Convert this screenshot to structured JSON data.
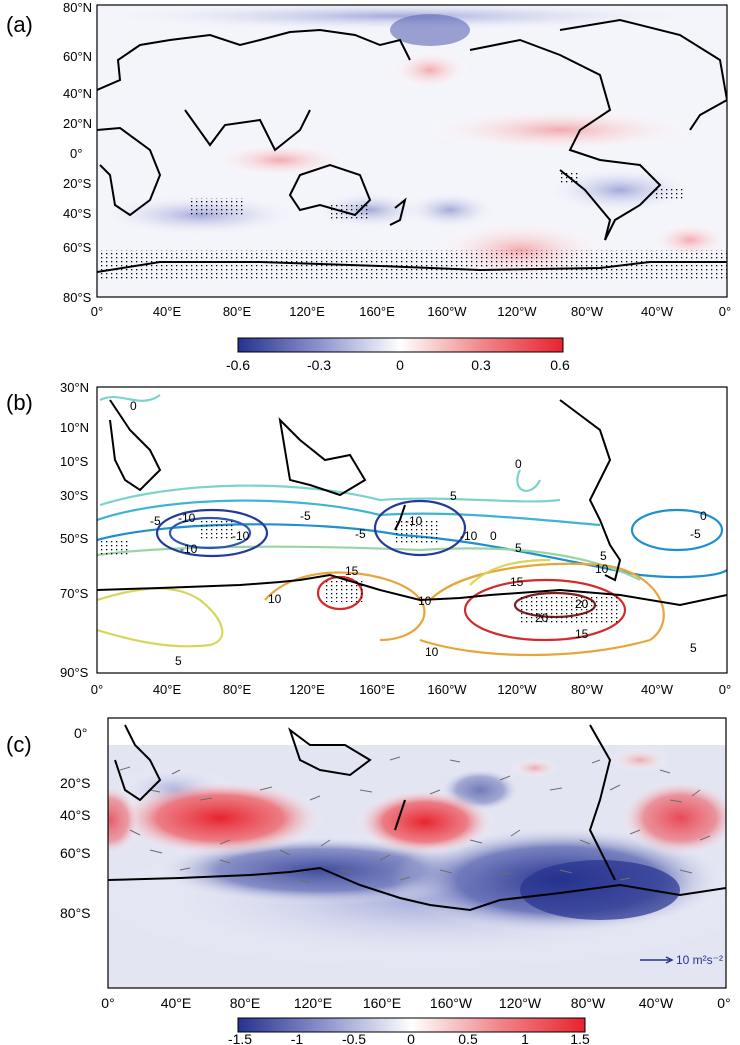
{
  "panels": {
    "a": {
      "label": "(a)",
      "lat_labels": [
        "80°N",
        "60°N",
        "40°N",
        "20°N",
        "0°",
        "20°S",
        "40°S",
        "60°S",
        "80°S"
      ],
      "lon_labels": [
        "0°",
        "40°E",
        "80°E",
        "120°E",
        "160°E",
        "160°W",
        "120°W",
        "80°W",
        "40°W",
        "0°"
      ],
      "colorbar": {
        "ticks": [
          "-0.6",
          "-0.3",
          "0",
          "0.3",
          "0.6"
        ],
        "min": -0.6,
        "max": 0.6
      }
    },
    "b": {
      "label": "(b)",
      "lat_labels": [
        "30°N",
        "10°N",
        "10°S",
        "30°S",
        "50°S",
        "70°S",
        "90°S"
      ],
      "lon_labels": [
        "0°",
        "40°E",
        "80°E",
        "120°E",
        "160°E",
        "160°W",
        "120°W",
        "80°W",
        "40°W",
        "0°"
      ],
      "contour_labels": [
        "0",
        "0",
        "-5",
        "-5",
        "-5",
        "-5",
        "-10",
        "-10",
        "-10",
        "-10",
        "-10",
        "0",
        "0",
        "5",
        "5",
        "5",
        "5",
        "10",
        "10",
        "10",
        "15",
        "15",
        "15",
        "20",
        "20",
        "10",
        "5"
      ]
    },
    "c": {
      "label": "(c)",
      "lat_labels": [
        "0°",
        "20°S",
        "40°S",
        "60°S",
        "80°S"
      ],
      "lon_labels": [
        "0°",
        "40°E",
        "80°E",
        "120°E",
        "160°E",
        "160°W",
        "120°W",
        "80°W",
        "40°W",
        "0°"
      ],
      "vector_reference": "10 m²s⁻²",
      "colorbar": {
        "ticks": [
          "-1.5",
          "-1",
          "-0.5",
          "0",
          "0.5",
          "1",
          "1.5"
        ],
        "min": -1.5,
        "max": 1.5
      }
    }
  },
  "colors": {
    "positive": "#e8232e",
    "negative": "#26338f",
    "neutral": "#ffffff"
  }
}
